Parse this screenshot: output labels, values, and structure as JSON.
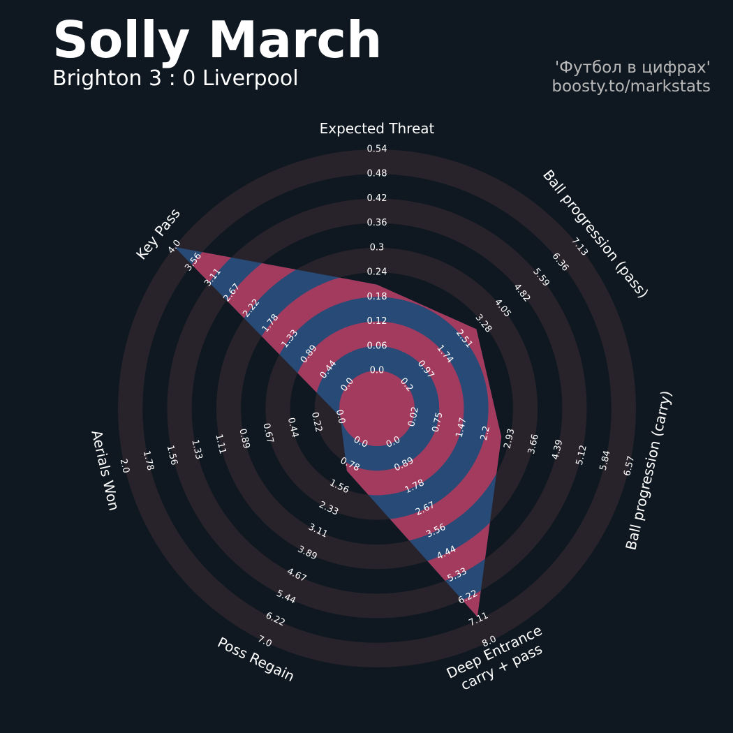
{
  "chart_data": {
    "type": "radar",
    "title": "Solly March",
    "subtitle": "Brighton 3 : 0 Liverpool",
    "credits": [
      "'Футбол в цифрах'",
      "boosty.to/markstats"
    ],
    "axes": [
      {
        "label": [
          "Expected Threat"
        ],
        "lim": [
          0,
          0.54
        ],
        "ticks": [
          {
            "value": 0,
            "label": "0.0"
          },
          0.06,
          0.12,
          0.18,
          0.24,
          0.3,
          0.36,
          0.42,
          0.48,
          0.54
        ]
      },
      {
        "label": [
          "Ball progression (pass)"
        ],
        "lim": [
          0.2,
          7.13
        ],
        "ticks": [
          0.2,
          0.97,
          1.74,
          2.51,
          3.28,
          4.05,
          4.82,
          5.59,
          6.36,
          7.13
        ]
      },
      {
        "label": [
          "Ball progression (carry)"
        ],
        "lim": [
          0.02,
          6.57
        ],
        "ticks": [
          0.02,
          0.75,
          1.47,
          2.2,
          2.93,
          3.66,
          4.39,
          5.12,
          5.84,
          6.57
        ]
      },
      {
        "label": [
          "Deep Entrance",
          "carry + pass"
        ],
        "lim": [
          0,
          8
        ],
        "ticks": [
          {
            "value": 0,
            "label": "0.0"
          },
          0.89,
          1.78,
          2.67,
          3.56,
          4.44,
          5.33,
          6.22,
          7.11,
          {
            "value": 8,
            "label": "8.0"
          }
        ]
      },
      {
        "label": [
          "Poss Regain"
        ],
        "lim": [
          0,
          7
        ],
        "ticks": [
          {
            "value": 0,
            "label": "0.0"
          },
          0.78,
          1.56,
          2.33,
          3.11,
          3.89,
          4.67,
          5.44,
          6.22,
          {
            "value": 7,
            "label": "7.0"
          }
        ]
      },
      {
        "label": [
          "Aerials Won"
        ],
        "lim": [
          0,
          2
        ],
        "ticks": [
          {
            "value": 0,
            "label": "0.0"
          },
          0.22,
          0.44,
          0.67,
          0.89,
          1.11,
          1.33,
          1.56,
          1.78,
          {
            "value": 2,
            "label": "2.0"
          }
        ]
      },
      {
        "label": [
          "Key Pass"
        ],
        "lim": [
          0,
          4
        ],
        "ticks": [
          {
            "value": 0,
            "label": "0.0"
          },
          0.44,
          0.89,
          1.33,
          1.78,
          2.22,
          2.67,
          3.11,
          3.56,
          {
            "value": 4,
            "label": "4.0"
          }
        ]
      }
    ],
    "series": [
      {
        "values": [
          0.21,
          3.0,
          2.68,
          7,
          1,
          0,
          4
        ],
        "color": "#284a77",
        "ring_color": "#a33b5f"
      }
    ],
    "ring_color": "#28232a"
  }
}
